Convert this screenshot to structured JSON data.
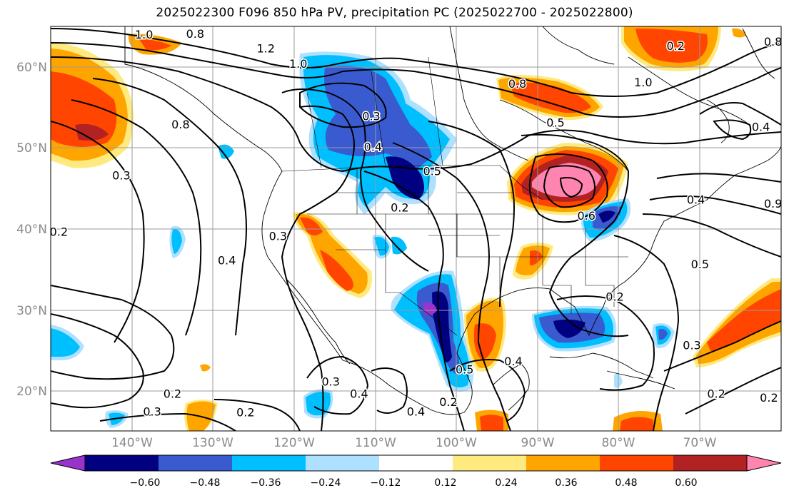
{
  "title": "2025022300 F096 850 hPa PV, precipitation PC (2025022700 - 2025022800)",
  "lat_ticks": [
    {
      "label": "60°N",
      "lat": 60
    },
    {
      "label": "50°N",
      "lat": 50
    },
    {
      "label": "40°N",
      "lat": 40
    },
    {
      "label": "30°N",
      "lat": 30
    },
    {
      "label": "20°N",
      "lat": 20
    }
  ],
  "lon_ticks": [
    {
      "label": "140°W",
      "lon": -140
    },
    {
      "label": "130°W",
      "lon": -130
    },
    {
      "label": "120°W",
      "lon": -120
    },
    {
      "label": "110°W",
      "lon": -110
    },
    {
      "label": "100°W",
      "lon": -100
    },
    {
      "label": "90°W",
      "lon": -90
    },
    {
      "label": "80°W",
      "lon": -80
    },
    {
      "label": "70°W",
      "lon": -70
    }
  ],
  "extent": {
    "lon_min": -150,
    "lon_max": -60,
    "lat_min": 15,
    "lat_max": 65
  },
  "colorbar": {
    "colors": [
      "#9933cc",
      "#000080",
      "#3a5bcf",
      "#00bfff",
      "#aee0ff",
      "#ffffff",
      "#ffea80",
      "#ffa500",
      "#ff4500",
      "#b22222",
      "#ff85b0"
    ],
    "ticks": [
      "−0.60",
      "−0.48",
      "−0.36",
      "−0.24",
      "−0.12",
      "0.12",
      "0.24",
      "0.36",
      "0.48",
      "0.60"
    ]
  },
  "contour_labels": [
    {
      "text": "1.0",
      "lon": -138.5,
      "lat": 63.9
    },
    {
      "text": "0.8",
      "lon": -132.2,
      "lat": 64.0
    },
    {
      "text": "1.2",
      "lon": -123.5,
      "lat": 62.2
    },
    {
      "text": "1.0",
      "lon": -119.5,
      "lat": 60.3
    },
    {
      "text": "0.3",
      "lon": -110.5,
      "lat": 53.8
    },
    {
      "text": "0.4",
      "lon": -110.3,
      "lat": 50.0
    },
    {
      "text": "0.8",
      "lon": -92.5,
      "lat": 57.8
    },
    {
      "text": "0.5",
      "lon": -87.8,
      "lat": 53.0
    },
    {
      "text": "0.5",
      "lon": -103.0,
      "lat": 47.0
    },
    {
      "text": "0.2",
      "lon": -107.0,
      "lat": 42.5
    },
    {
      "text": "0.8",
      "lon": -134.0,
      "lat": 52.8
    },
    {
      "text": "0.3",
      "lon": -141.3,
      "lat": 46.5
    },
    {
      "text": "0.2",
      "lon": -149.0,
      "lat": 39.5
    },
    {
      "text": "0.3",
      "lon": -122.0,
      "lat": 39.0
    },
    {
      "text": "0.4",
      "lon": -128.3,
      "lat": 36.0
    },
    {
      "text": "0.2",
      "lon": -80.5,
      "lat": 31.5
    },
    {
      "text": "0.5",
      "lon": -70.0,
      "lat": 35.5
    },
    {
      "text": "0.6",
      "lon": -84.0,
      "lat": 41.5
    },
    {
      "text": "0.4",
      "lon": -70.5,
      "lat": 43.5
    },
    {
      "text": "0.4",
      "lon": -62.5,
      "lat": 52.5
    },
    {
      "text": "1.0",
      "lon": -77.0,
      "lat": 58.0
    },
    {
      "text": "0.8",
      "lon": -61.0,
      "lat": 63.0
    },
    {
      "text": "0.2",
      "lon": -73.0,
      "lat": 62.5
    },
    {
      "text": "0.9",
      "lon": -61.0,
      "lat": 43.0
    },
    {
      "text": "0.3",
      "lon": -71.0,
      "lat": 25.5
    },
    {
      "text": "0.2",
      "lon": -68.0,
      "lat": 19.5
    },
    {
      "text": "0.2",
      "lon": -61.5,
      "lat": 19.0
    },
    {
      "text": "0.5",
      "lon": -99.0,
      "lat": 22.5
    },
    {
      "text": "0.4",
      "lon": -93.0,
      "lat": 23.5
    },
    {
      "text": "0.2",
      "lon": -101.0,
      "lat": 18.5
    },
    {
      "text": "0.4",
      "lon": -105.0,
      "lat": 17.3
    },
    {
      "text": "0.4",
      "lon": -112.0,
      "lat": 19.5
    },
    {
      "text": "0.3",
      "lon": -115.5,
      "lat": 21.0
    },
    {
      "text": "0.2",
      "lon": -126.0,
      "lat": 17.2
    },
    {
      "text": "0.2",
      "lon": -135.0,
      "lat": 19.5
    },
    {
      "text": "0.3",
      "lon": -137.5,
      "lat": 17.3
    }
  ]
}
